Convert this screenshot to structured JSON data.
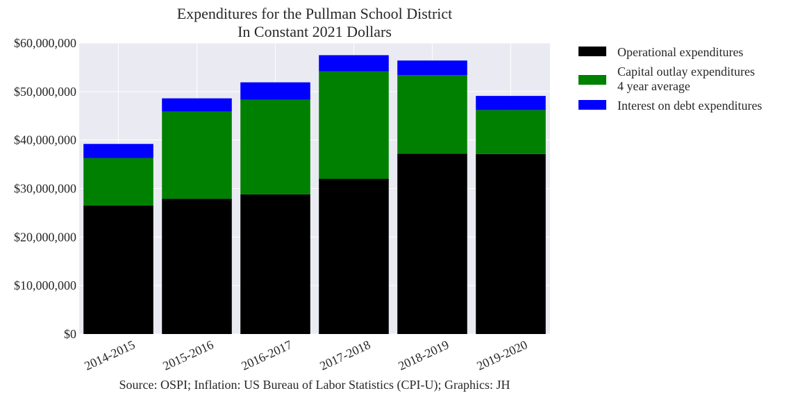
{
  "chart_data": {
    "type": "bar",
    "stacked": true,
    "title": "Expenditures for the Pullman School District",
    "subtitle": "In Constant 2021 Dollars",
    "xlabel": "",
    "ylabel": "",
    "source": "Source: OSPI; Inflation: US Bureau of Labor Statistics (CPI-U); Graphics: JH",
    "categories": [
      "2014-2015",
      "2015-2016",
      "2016-2017",
      "2017-2018",
      "2018-2019",
      "2019-2020"
    ],
    "ylim": [
      0,
      60000000
    ],
    "yticks": [
      0,
      10000000,
      20000000,
      30000000,
      40000000,
      50000000,
      60000000
    ],
    "ytick_labels": [
      "$0",
      "$10,000,000",
      "$20,000,000",
      "$30,000,000",
      "$40,000,000",
      "$50,000,000",
      "$60,000,000"
    ],
    "grid": true,
    "legend_position": "outside-right-top",
    "series": [
      {
        "name": "Operational expenditures",
        "color": "#000000",
        "values": [
          26500000,
          27900000,
          28800000,
          32000000,
          37200000,
          37100000
        ]
      },
      {
        "name": "Capital outlay expenditures",
        "name_line2": "4 year average",
        "color": "#008000",
        "values": [
          9800000,
          18000000,
          19500000,
          22200000,
          16200000,
          9100000
        ]
      },
      {
        "name": "Interest on debt expenditures",
        "color": "#0000ff",
        "values": [
          2900000,
          2700000,
          3600000,
          3300000,
          3000000,
          2900000
        ]
      }
    ]
  }
}
